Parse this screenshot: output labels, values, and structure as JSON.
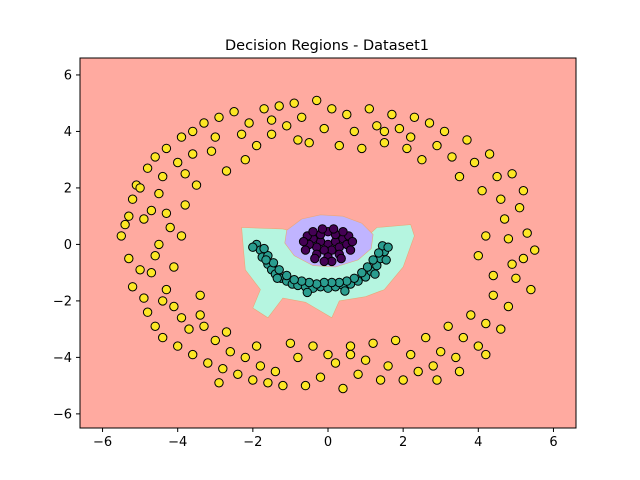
{
  "chart_data": {
    "type": "scatter",
    "title": "Decision Regions - Dataset1",
    "xlabel": "",
    "ylabel": "",
    "xlim": [
      -6.6,
      6.6
    ],
    "ylim": [
      -6.5,
      6.6
    ],
    "xticks": [
      -6,
      -4,
      -2,
      0,
      2,
      4,
      6
    ],
    "yticks": [
      -6,
      -4,
      -2,
      0,
      2,
      4,
      6
    ],
    "grid": false,
    "regions": [
      {
        "class": "outer",
        "color": "#ffaaa0",
        "description_points": []
      },
      {
        "class": "arc",
        "color": "#b5f5e0",
        "polygon": [
          [
            -2.3,
            0.6
          ],
          [
            -1.2,
            0.55
          ],
          [
            -0.9,
            0.45
          ],
          [
            -0.7,
            0.35
          ],
          [
            -0.5,
            -0.2
          ],
          [
            0.0,
            -0.3
          ],
          [
            0.5,
            -0.2
          ],
          [
            0.9,
            0.1
          ],
          [
            1.3,
            0.6
          ],
          [
            2.2,
            0.7
          ],
          [
            2.3,
            0.3
          ],
          [
            2.0,
            -0.8
          ],
          [
            1.5,
            -1.6
          ],
          [
            1.0,
            -1.85
          ],
          [
            0.3,
            -2.0
          ],
          [
            0.1,
            -2.6
          ],
          [
            -0.6,
            -2.05
          ],
          [
            -1.2,
            -1.9
          ],
          [
            -1.6,
            -2.6
          ],
          [
            -2.0,
            -2.25
          ],
          [
            -1.8,
            -1.6
          ],
          [
            -2.2,
            -0.9
          ],
          [
            -2.25,
            -0.2
          ]
        ]
      },
      {
        "class": "inner",
        "color": "#c0b4ff",
        "polygon": [
          [
            -1.1,
            0.5
          ],
          [
            -0.7,
            0.9
          ],
          [
            -0.2,
            1.05
          ],
          [
            0.4,
            1.0
          ],
          [
            0.9,
            0.75
          ],
          [
            1.2,
            0.35
          ],
          [
            1.15,
            -0.15
          ],
          [
            0.8,
            -0.55
          ],
          [
            0.2,
            -0.8
          ],
          [
            -0.4,
            -0.75
          ],
          [
            -0.9,
            -0.4
          ],
          [
            -1.15,
            0.05
          ]
        ]
      }
    ],
    "series": [
      {
        "name": "",
        "color": "#fde725",
        "points": [
          [
            -5.5,
            0.3
          ],
          [
            -5.4,
            0.7
          ],
          [
            -5.3,
            -0.5
          ],
          [
            -5.3,
            1.0
          ],
          [
            -5.2,
            1.6
          ],
          [
            -5.2,
            -1.5
          ],
          [
            -5.1,
            2.1
          ],
          [
            -5.0,
            -0.9
          ],
          [
            -5.0,
            2.0
          ],
          [
            -4.9,
            -1.9
          ],
          [
            -4.8,
            2.7
          ],
          [
            -4.8,
            -2.4
          ],
          [
            -4.7,
            1.2
          ],
          [
            -4.7,
            -1.0
          ],
          [
            -4.6,
            3.1
          ],
          [
            -4.6,
            -2.9
          ],
          [
            -4.5,
            0.0
          ],
          [
            -4.5,
            1.8
          ],
          [
            -4.4,
            -3.3
          ],
          [
            -4.4,
            2.4
          ],
          [
            -4.3,
            3.4
          ],
          [
            -4.3,
            -1.6
          ],
          [
            -4.2,
            0.6
          ],
          [
            -4.1,
            -2.2
          ],
          [
            -4.0,
            -3.6
          ],
          [
            -4.0,
            2.9
          ],
          [
            -3.9,
            3.8
          ],
          [
            -3.9,
            -2.6
          ],
          [
            -3.8,
            1.4
          ],
          [
            -3.7,
            -3.0
          ],
          [
            -3.6,
            4.0
          ],
          [
            -3.6,
            -3.9
          ],
          [
            -3.5,
            2.1
          ],
          [
            -3.4,
            -1.8
          ],
          [
            -3.3,
            4.3
          ],
          [
            -3.2,
            -4.2
          ],
          [
            -3.1,
            3.3
          ],
          [
            -3.0,
            -3.4
          ],
          [
            -2.9,
            4.5
          ],
          [
            -2.8,
            -4.4
          ],
          [
            -2.7,
            2.6
          ],
          [
            -2.6,
            -3.8
          ],
          [
            -2.5,
            4.7
          ],
          [
            -2.4,
            -4.6
          ],
          [
            -2.3,
            3.9
          ],
          [
            -2.2,
            -4.0
          ],
          [
            -2.1,
            4.3
          ],
          [
            -2.0,
            -4.8
          ],
          [
            -1.9,
            3.5
          ],
          [
            -1.8,
            -4.3
          ],
          [
            -1.7,
            4.8
          ],
          [
            -1.6,
            -4.9
          ],
          [
            -1.5,
            3.9
          ],
          [
            -1.4,
            -4.5
          ],
          [
            -1.3,
            4.9
          ],
          [
            -1.2,
            -5.0
          ],
          [
            -1.1,
            4.2
          ],
          [
            -1.0,
            -3.5
          ],
          [
            -0.9,
            5.0
          ],
          [
            -0.8,
            -4.0
          ],
          [
            -0.7,
            4.5
          ],
          [
            -0.6,
            -5.0
          ],
          [
            -0.5,
            3.6
          ],
          [
            -0.4,
            -3.6
          ],
          [
            -0.3,
            5.1
          ],
          [
            -0.2,
            -4.7
          ],
          [
            -0.1,
            4.1
          ],
          [
            0.0,
            -3.9
          ],
          [
            0.1,
            4.8
          ],
          [
            0.2,
            -4.2
          ],
          [
            0.3,
            3.5
          ],
          [
            0.4,
            -5.1
          ],
          [
            0.5,
            4.6
          ],
          [
            0.6,
            -3.6
          ],
          [
            0.7,
            4.0
          ],
          [
            0.8,
            -4.6
          ],
          [
            0.9,
            3.4
          ],
          [
            1.0,
            -4.1
          ],
          [
            1.1,
            4.8
          ],
          [
            1.2,
            -3.5
          ],
          [
            1.3,
            4.2
          ],
          [
            1.4,
            -4.8
          ],
          [
            1.5,
            3.6
          ],
          [
            1.6,
            -4.3
          ],
          [
            1.7,
            4.6
          ],
          [
            1.8,
            -3.4
          ],
          [
            1.9,
            4.1
          ],
          [
            2.0,
            -4.8
          ],
          [
            2.1,
            3.4
          ],
          [
            2.2,
            -3.9
          ],
          [
            2.3,
            4.5
          ],
          [
            2.4,
            -4.5
          ],
          [
            2.5,
            3.0
          ],
          [
            2.6,
            -3.3
          ],
          [
            2.7,
            4.3
          ],
          [
            2.8,
            -4.3
          ],
          [
            2.9,
            3.5
          ],
          [
            3.0,
            -3.8
          ],
          [
            3.1,
            4.0
          ],
          [
            3.2,
            -2.9
          ],
          [
            3.3,
            3.1
          ],
          [
            3.4,
            -4.0
          ],
          [
            3.5,
            2.4
          ],
          [
            3.6,
            -3.3
          ],
          [
            3.7,
            3.7
          ],
          [
            3.8,
            -2.5
          ],
          [
            3.9,
            2.9
          ],
          [
            4.0,
            -3.6
          ],
          [
            4.1,
            1.9
          ],
          [
            4.2,
            -2.8
          ],
          [
            4.3,
            3.2
          ],
          [
            4.4,
            -1.8
          ],
          [
            4.5,
            2.4
          ],
          [
            4.6,
            -3.0
          ],
          [
            4.7,
            0.9
          ],
          [
            4.8,
            -2.2
          ],
          [
            4.9,
            2.5
          ],
          [
            5.0,
            -1.2
          ],
          [
            5.1,
            1.3
          ],
          [
            5.2,
            -0.5
          ],
          [
            5.3,
            0.4
          ],
          [
            5.4,
            -1.6
          ],
          [
            5.5,
            -0.2
          ],
          [
            5.2,
            1.9
          ],
          [
            4.9,
            -0.7
          ],
          [
            4.6,
            1.6
          ],
          [
            4.4,
            -1.1
          ],
          [
            4.2,
            0.3
          ],
          [
            4.0,
            -0.4
          ],
          [
            4.8,
            0.2
          ],
          [
            -4.9,
            0.9
          ],
          [
            -4.6,
            -0.4
          ],
          [
            -4.3,
            1.1
          ],
          [
            -4.1,
            -0.8
          ],
          [
            -3.9,
            0.3
          ],
          [
            -4.4,
            -2.0
          ],
          [
            -3.6,
            3.2
          ],
          [
            -3.4,
            -2.5
          ],
          [
            -3.0,
            3.8
          ],
          [
            -2.7,
            -3.1
          ],
          [
            -3.8,
            2.5
          ],
          [
            -2.2,
            3.0
          ],
          [
            -1.5,
            4.4
          ],
          [
            -0.8,
            3.7
          ],
          [
            1.5,
            4.0
          ],
          [
            2.2,
            3.8
          ],
          [
            2.9,
            -4.8
          ],
          [
            -2.9,
            -4.9
          ],
          [
            0.6,
            -3.9
          ],
          [
            -1.9,
            -3.6
          ],
          [
            3.5,
            -4.5
          ],
          [
            4.2,
            -3.9
          ],
          [
            -3.3,
            -2.9
          ]
        ]
      },
      {
        "name": "",
        "color": "#2a9d8f",
        "points": [
          [
            -1.9,
            0.0
          ],
          [
            -1.8,
            -0.2
          ],
          [
            -1.75,
            -0.45
          ],
          [
            -1.6,
            -0.7
          ],
          [
            -1.5,
            -0.9
          ],
          [
            -1.4,
            -1.05
          ],
          [
            -1.25,
            -1.2
          ],
          [
            -1.1,
            -1.3
          ],
          [
            -0.95,
            -1.4
          ],
          [
            -0.8,
            -1.45
          ],
          [
            -0.6,
            -1.5
          ],
          [
            -0.4,
            -1.55
          ],
          [
            -0.2,
            -1.5
          ],
          [
            0.0,
            -1.55
          ],
          [
            0.2,
            -1.5
          ],
          [
            0.4,
            -1.45
          ],
          [
            0.6,
            -1.4
          ],
          [
            0.8,
            -1.3
          ],
          [
            1.0,
            -1.15
          ],
          [
            1.15,
            -0.95
          ],
          [
            1.3,
            -0.75
          ],
          [
            1.4,
            -0.5
          ],
          [
            1.5,
            -0.25
          ],
          [
            1.45,
            -0.05
          ],
          [
            1.35,
            -0.3
          ],
          [
            1.2,
            -0.55
          ],
          [
            1.05,
            -0.8
          ],
          [
            0.9,
            -1.0
          ],
          [
            0.7,
            -1.2
          ],
          [
            0.5,
            -1.3
          ],
          [
            0.3,
            -1.35
          ],
          [
            0.1,
            -1.35
          ],
          [
            -0.1,
            -1.35
          ],
          [
            -0.3,
            -1.4
          ],
          [
            -0.5,
            -1.35
          ],
          [
            -0.7,
            -1.3
          ],
          [
            -0.9,
            -1.25
          ],
          [
            -1.1,
            -1.1
          ],
          [
            -1.3,
            -0.9
          ],
          [
            -1.45,
            -0.65
          ],
          [
            -1.6,
            -0.4
          ],
          [
            -1.7,
            -0.15
          ],
          [
            -2.0,
            -0.1
          ],
          [
            -1.65,
            -0.55
          ],
          [
            -1.35,
            -1.2
          ],
          [
            -0.55,
            -1.7
          ],
          [
            0.45,
            -1.65
          ],
          [
            1.25,
            -1.05
          ],
          [
            1.55,
            -0.55
          ],
          [
            1.6,
            -0.1
          ]
        ]
      },
      {
        "name": "",
        "color": "#440154",
        "points": [
          [
            0.0,
            0.0
          ],
          [
            0.2,
            0.1
          ],
          [
            -0.2,
            0.1
          ],
          [
            0.1,
            -0.2
          ],
          [
            -0.1,
            -0.2
          ],
          [
            0.3,
            -0.1
          ],
          [
            -0.3,
            -0.1
          ],
          [
            0.4,
            0.2
          ],
          [
            -0.4,
            0.2
          ],
          [
            0.2,
            0.35
          ],
          [
            -0.2,
            0.35
          ],
          [
            0.0,
            0.45
          ],
          [
            0.5,
            0.0
          ],
          [
            -0.5,
            0.0
          ],
          [
            0.3,
            -0.35
          ],
          [
            -0.3,
            -0.35
          ],
          [
            0.0,
            -0.45
          ],
          [
            0.55,
            0.3
          ],
          [
            -0.55,
            0.3
          ],
          [
            0.6,
            -0.2
          ],
          [
            -0.6,
            -0.2
          ],
          [
            0.15,
            0.55
          ],
          [
            -0.15,
            0.55
          ],
          [
            0.4,
            0.45
          ],
          [
            -0.4,
            0.45
          ],
          [
            0.35,
            -0.5
          ],
          [
            -0.35,
            -0.5
          ],
          [
            0.1,
            -0.6
          ],
          [
            -0.1,
            -0.6
          ],
          [
            0.65,
            0.1
          ],
          [
            -0.65,
            0.1
          ]
        ]
      }
    ]
  }
}
